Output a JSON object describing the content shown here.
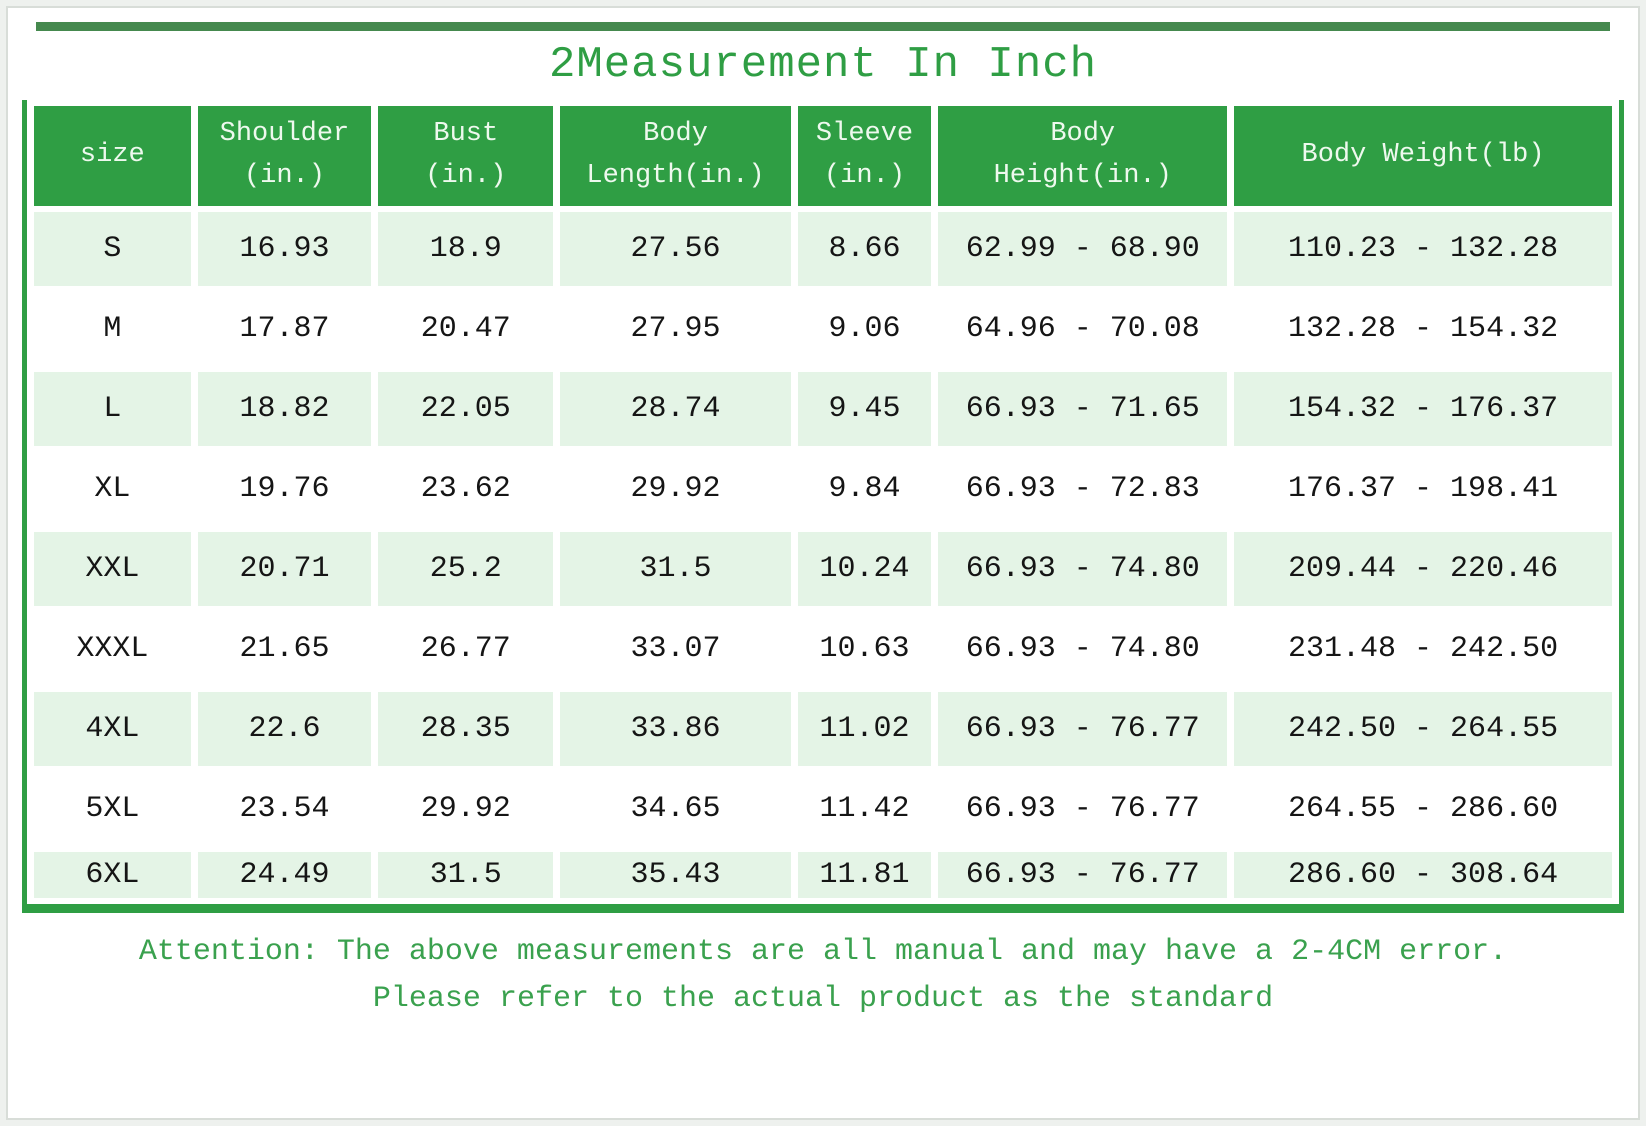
{
  "title": "2Measurement In Inch",
  "table": {
    "columns": [
      "size",
      "Shoulder\n(in.)",
      "Bust\n(in.)",
      "Body\nLength(in.)",
      "Sleeve\n(in.)",
      "Body\nHeight(in.)",
      "Body Weight(lb)"
    ],
    "rows": [
      [
        "S",
        "16.93",
        "18.9",
        "27.56",
        "8.66",
        "62.99 - 68.90",
        "110.23 - 132.28"
      ],
      [
        "M",
        "17.87",
        "20.47",
        "27.95",
        "9.06",
        "64.96 - 70.08",
        "132.28 - 154.32"
      ],
      [
        "L",
        "18.82",
        "22.05",
        "28.74",
        "9.45",
        "66.93 - 71.65",
        "154.32 - 176.37"
      ],
      [
        "XL",
        "19.76",
        "23.62",
        "29.92",
        "9.84",
        "66.93 - 72.83",
        "176.37 - 198.41"
      ],
      [
        "XXL",
        "20.71",
        "25.2",
        "31.5",
        "10.24",
        "66.93 - 74.80",
        "209.44 - 220.46"
      ],
      [
        "XXXL",
        "21.65",
        "26.77",
        "33.07",
        "10.63",
        "66.93 - 74.80",
        "231.48 - 242.50"
      ],
      [
        "4XL",
        "22.6",
        "28.35",
        "33.86",
        "11.02",
        "66.93 - 76.77",
        "242.50 - 264.55"
      ],
      [
        "5XL",
        "23.54",
        "29.92",
        "34.65",
        "11.42",
        "66.93 - 76.77",
        "264.55 - 286.60"
      ],
      [
        "6XL",
        "24.49",
        "31.5",
        "35.43",
        "11.81",
        "66.93 - 76.77",
        "286.60 - 308.64"
      ]
    ]
  },
  "attention": {
    "line1": "Attention: The above measurements are all manual and may have a 2-4CM error.",
    "line2": "Please refer to the actual product as the standard"
  },
  "colors": {
    "accent_green": "#2f9e44",
    "top_bar": "#45894e",
    "header_bg": "#2f9e44",
    "header_text": "#eef9ee",
    "row_alt_bg": "#e4f4e6",
    "note_green": "#3aa14e",
    "text_dark": "#151515"
  }
}
